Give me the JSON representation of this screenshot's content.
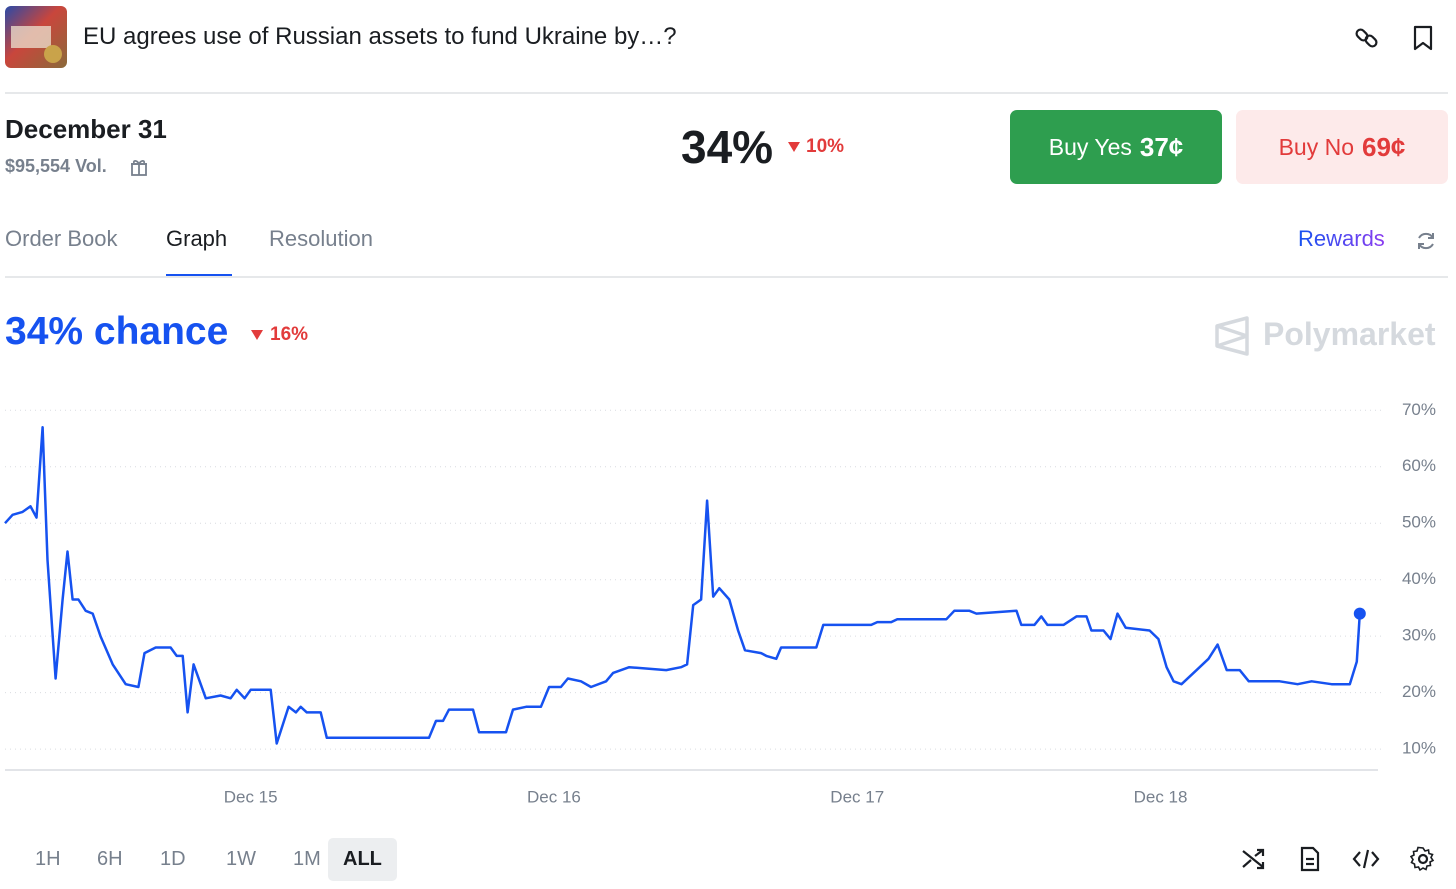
{
  "header": {
    "title": "EU agrees use of Russian assets to fund Ukraine by…?"
  },
  "market": {
    "date": "December 31",
    "volume": "$95,554 Vol.",
    "price": "34%",
    "change": "10%"
  },
  "buy_yes": {
    "label": "Buy Yes",
    "price": "37¢"
  },
  "buy_no": {
    "label": "Buy No",
    "price": "69¢"
  },
  "tabs": [
    "Order Book",
    "Graph",
    "Resolution"
  ],
  "rewards": "Rewards",
  "graph": {
    "headline": "34% chance",
    "change": "16%",
    "watermark": "Polymarket"
  },
  "ranges": [
    "1H",
    "6H",
    "1D",
    "1W",
    "1M",
    "ALL"
  ],
  "chart_data": {
    "type": "line",
    "color": "#1652f0",
    "grid": true,
    "xlim": [
      14.19,
      18.717
    ],
    "ylim": [
      6.3,
      72
    ],
    "xticks": [
      {
        "value": 15,
        "label": "Dec 15"
      },
      {
        "value": 16,
        "label": "Dec 16"
      },
      {
        "value": 17,
        "label": "Dec 17"
      },
      {
        "value": 18,
        "label": "Dec 18"
      }
    ],
    "yticks": [
      {
        "value": 10,
        "label": "10%"
      },
      {
        "value": 20,
        "label": "20%"
      },
      {
        "value": 30,
        "label": "30%"
      },
      {
        "value": 40,
        "label": "40%"
      },
      {
        "value": 50,
        "label": "50%"
      },
      {
        "value": 60,
        "label": "60%"
      },
      {
        "value": 70,
        "label": "70%"
      }
    ],
    "x": [
      14.19,
      14.215,
      14.248,
      14.274,
      14.294,
      14.314,
      14.33,
      14.357,
      14.38,
      14.396,
      14.413,
      14.432,
      14.456,
      14.479,
      14.505,
      14.545,
      14.588,
      14.63,
      14.65,
      14.687,
      14.736,
      14.756,
      14.776,
      14.792,
      14.812,
      14.852,
      14.901,
      14.934,
      14.954,
      14.98,
      15.0,
      15.066,
      15.086,
      15.125,
      15.149,
      15.165,
      15.185,
      15.231,
      15.251,
      15.588,
      15.611,
      15.634,
      15.654,
      15.733,
      15.753,
      15.842,
      15.865,
      15.908,
      15.957,
      15.984,
      16.023,
      16.046,
      16.089,
      16.122,
      16.172,
      16.195,
      16.248,
      16.37,
      16.419,
      16.439,
      16.459,
      16.485,
      16.505,
      16.525,
      16.545,
      16.578,
      16.607,
      16.63,
      16.683,
      16.7,
      16.733,
      16.749,
      16.865,
      16.888,
      17.046,
      17.066,
      17.112,
      17.132,
      17.294,
      17.32,
      17.37,
      17.393,
      17.525,
      17.541,
      17.584,
      17.607,
      17.627,
      17.68,
      17.723,
      17.756,
      17.772,
      17.812,
      17.835,
      17.858,
      17.885,
      17.964,
      17.993,
      18.02,
      18.043,
      18.069,
      18.119,
      18.158,
      18.188,
      18.218,
      18.261,
      18.291,
      18.393,
      18.452,
      18.498,
      18.564,
      18.624,
      18.647,
      18.657
    ],
    "values": [
      50,
      51.5,
      52,
      53,
      51,
      67,
      43.5,
      22.5,
      36.5,
      45,
      36.5,
      36.5,
      34.5,
      34,
      30,
      25,
      21.5,
      21,
      27,
      28,
      28,
      26.5,
      26.5,
      16.5,
      25,
      19,
      19.5,
      19,
      20.5,
      19,
      20.5,
      20.5,
      11,
      17.5,
      16.5,
      17.5,
      16.5,
      16.5,
      12,
      12,
      15,
      15,
      17,
      17,
      13,
      13,
      17,
      17.5,
      17.5,
      21,
      21,
      22.5,
      22,
      21,
      22,
      23.5,
      24.5,
      24,
      24.5,
      25,
      35.5,
      36.5,
      54,
      37,
      38.5,
      36.5,
      31,
      27.5,
      27,
      26.5,
      26,
      28,
      28,
      32,
      32,
      32.5,
      32.5,
      33,
      33,
      34.5,
      34.5,
      34,
      34.5,
      32,
      32,
      33.5,
      32,
      32,
      33.5,
      33.5,
      31,
      31,
      29.5,
      34,
      31.5,
      31,
      29.5,
      24.5,
      22,
      21.5,
      24,
      26,
      28.5,
      24,
      24,
      22,
      22,
      21.5,
      22,
      21.5,
      21.5,
      25.5,
      34
    ]
  }
}
